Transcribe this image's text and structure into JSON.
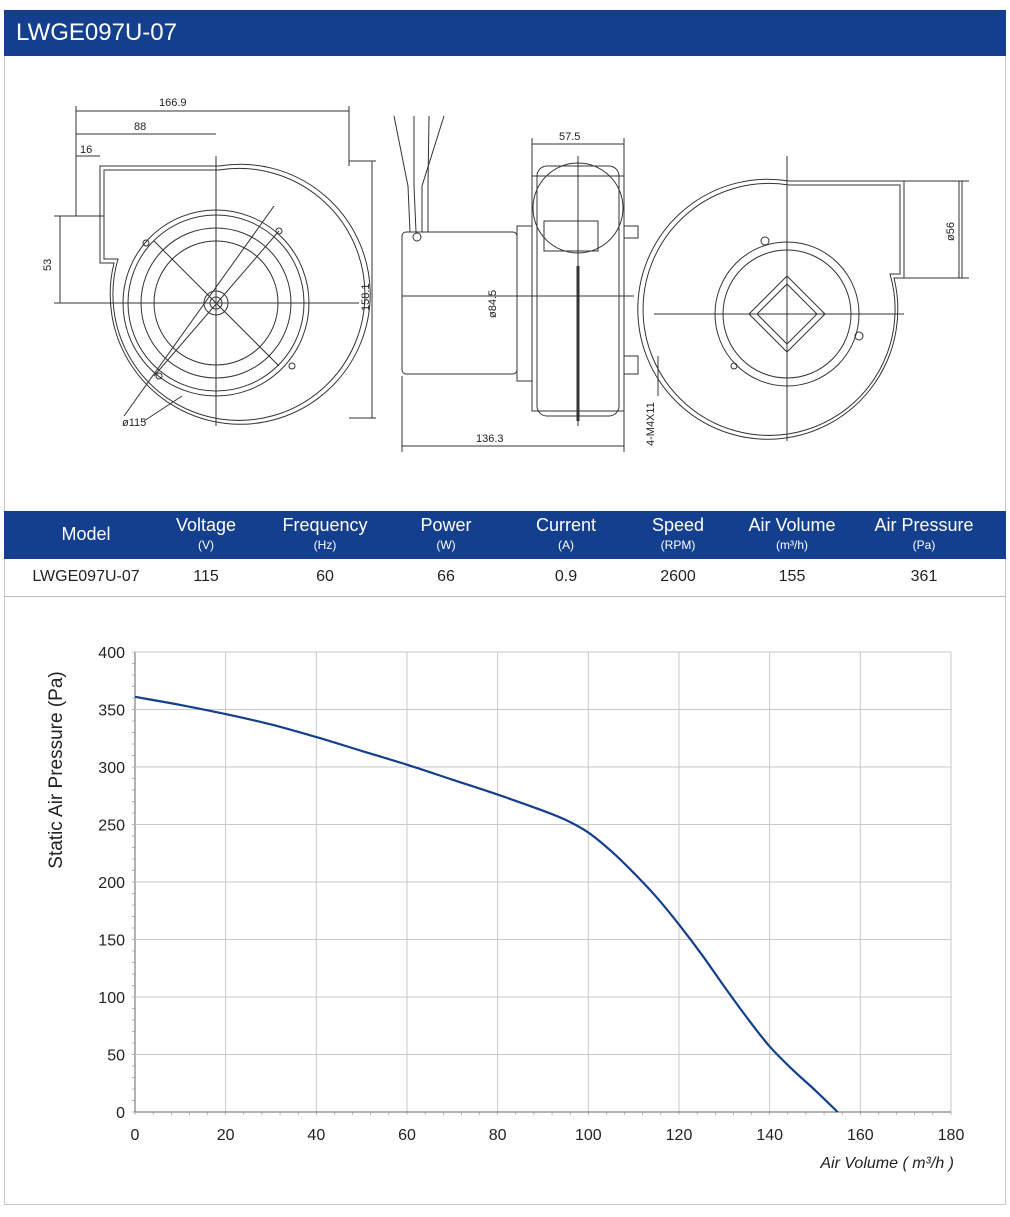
{
  "header": {
    "title": "LWGE097U-07"
  },
  "drawing": {
    "dims": {
      "overall_width": "166.9",
      "center_offset": "88",
      "outlet_offset": "16",
      "outlet_height": "53",
      "overall_height": "158.1",
      "impeller_dia": "ø115",
      "side_width": "57.5",
      "motor_dia": "ø84.5",
      "depth": "136.3",
      "mount_holes": "4-M4X11",
      "outlet_dia": "ø56"
    }
  },
  "specs": {
    "columns": [
      {
        "name": "Model",
        "unit": ""
      },
      {
        "name": "Voltage",
        "unit": "(V)"
      },
      {
        "name": "Frequency",
        "unit": "(Hz)"
      },
      {
        "name": "Power",
        "unit": "(W)"
      },
      {
        "name": "Current",
        "unit": "(A)"
      },
      {
        "name": "Speed",
        "unit": "(RPM)"
      },
      {
        "name": "Air Volume",
        "unit": "(m³/h)"
      },
      {
        "name": "Air Pressure",
        "unit": "(Pa)"
      }
    ],
    "row": [
      "LWGE097U-07",
      "115",
      "60",
      "66",
      "0.9",
      "2600",
      "155",
      "361"
    ]
  },
  "chart_data": {
    "type": "line",
    "title": "",
    "xlabel": "Air Volume ( m³/h )",
    "ylabel": "Static Air Pressure  (Pa)",
    "xlim": [
      0,
      180
    ],
    "ylim": [
      0,
      400
    ],
    "xticks": [
      0,
      20,
      40,
      60,
      80,
      100,
      120,
      140,
      160,
      180
    ],
    "yticks": [
      0,
      50,
      100,
      150,
      200,
      250,
      300,
      350,
      400
    ],
    "grid": true,
    "line_color": "#143f8e",
    "series": [
      {
        "x": [
          0,
          10,
          20,
          30,
          40,
          50,
          60,
          70,
          80,
          90,
          95,
          100,
          105,
          110,
          115,
          120,
          125,
          130,
          135,
          140,
          145,
          150,
          155
        ],
        "values": [
          361,
          354,
          346,
          337,
          326,
          314,
          302,
          289,
          276,
          262,
          254,
          243,
          227,
          208,
          187,
          163,
          137,
          109,
          82,
          57,
          37,
          19,
          0
        ]
      }
    ]
  }
}
